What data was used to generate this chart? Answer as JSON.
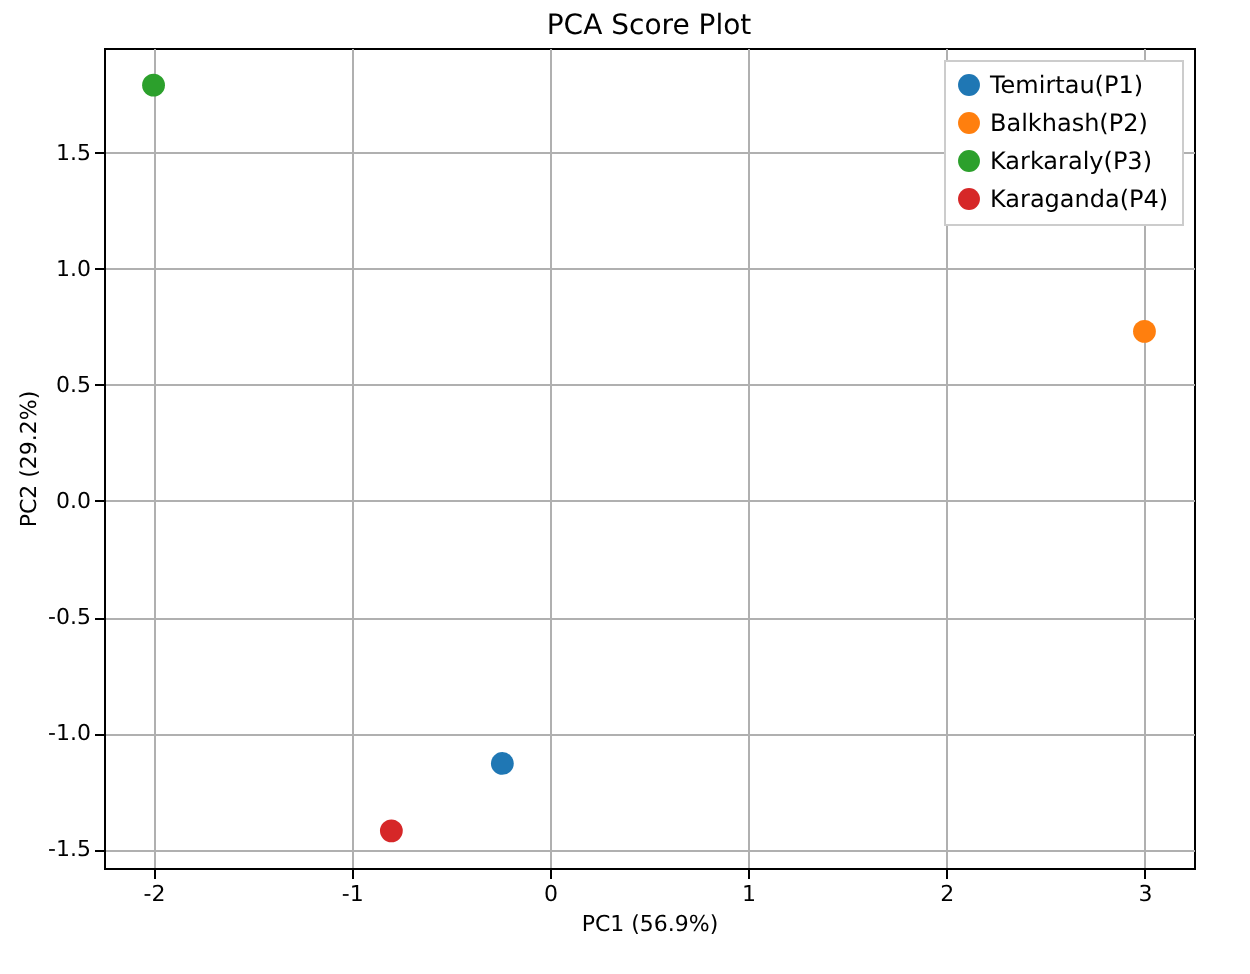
{
  "chart_data": {
    "type": "scatter",
    "title": "PCA Score Plot",
    "xlabel": "PC1 (56.9%)",
    "ylabel": "PC2 (29.2%)",
    "series": [
      {
        "name": "Temirtau(P1)",
        "color": "#1f77b4",
        "x": [
          -0.24
        ],
        "values": [
          -1.13
        ]
      },
      {
        "name": "Balkhash(P2)",
        "color": "#ff7f0e",
        "x": [
          3.0
        ],
        "values": [
          0.73
        ]
      },
      {
        "name": "Karkaraly(P3)",
        "color": "#2ca02c",
        "x": [
          -2.0
        ],
        "values": [
          1.79
        ]
      },
      {
        "name": "Karaganda(P4)",
        "color": "#d62728",
        "x": [
          -0.8
        ],
        "values": [
          -1.42
        ]
      }
    ],
    "xlim": [
      -2.25,
      3.25
    ],
    "xticks": [
      -2,
      -1,
      0,
      1,
      2,
      3
    ],
    "ylim": [
      -1.58,
      1.95
    ],
    "yticks": [
      -1.5,
      {
        "value": -1,
        "label": "-1.0"
      },
      -0.5,
      {
        "value": 0,
        "label": "0.0"
      },
      0.5,
      {
        "value": 1,
        "label": "1.0"
      },
      1.5
    ],
    "grid": true,
    "legend": "top right",
    "marker": "circle"
  }
}
